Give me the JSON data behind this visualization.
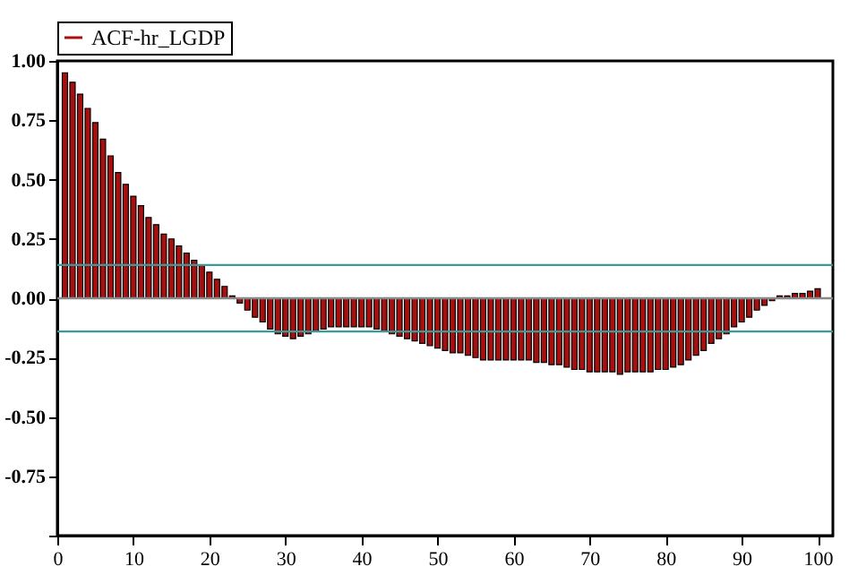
{
  "chart_data": {
    "type": "bar",
    "x": [
      1,
      2,
      3,
      4,
      5,
      6,
      7,
      8,
      9,
      10,
      11,
      12,
      13,
      14,
      15,
      16,
      17,
      18,
      19,
      20,
      21,
      22,
      23,
      24,
      25,
      26,
      27,
      28,
      29,
      30,
      31,
      32,
      33,
      34,
      35,
      36,
      37,
      38,
      39,
      40,
      41,
      42,
      43,
      44,
      45,
      46,
      47,
      48,
      49,
      50,
      51,
      52,
      53,
      54,
      55,
      56,
      57,
      58,
      59,
      60,
      61,
      62,
      63,
      64,
      65,
      66,
      67,
      68,
      69,
      70,
      71,
      72,
      73,
      74,
      75,
      76,
      77,
      78,
      79,
      80,
      81,
      82,
      83,
      84,
      85,
      86,
      87,
      88,
      89,
      90,
      91,
      92,
      93,
      94,
      95,
      96,
      97,
      98,
      99,
      100
    ],
    "series": [
      {
        "name": "ACF-hr_LGDP",
        "color": "#a81010",
        "values": [
          0.95,
          0.91,
          0.86,
          0.8,
          0.74,
          0.67,
          0.6,
          0.53,
          0.48,
          0.43,
          0.39,
          0.34,
          0.31,
          0.27,
          0.25,
          0.22,
          0.19,
          0.16,
          0.14,
          0.11,
          0.08,
          0.05,
          0.01,
          -0.02,
          -0.05,
          -0.08,
          -0.1,
          -0.13,
          -0.15,
          -0.16,
          -0.17,
          -0.16,
          -0.15,
          -0.14,
          -0.13,
          -0.12,
          -0.12,
          -0.12,
          -0.12,
          -0.12,
          -0.12,
          -0.13,
          -0.14,
          -0.15,
          -0.16,
          -0.17,
          -0.18,
          -0.19,
          -0.2,
          -0.21,
          -0.22,
          -0.23,
          -0.23,
          -0.24,
          -0.25,
          -0.26,
          -0.26,
          -0.26,
          -0.26,
          -0.26,
          -0.26,
          -0.26,
          -0.27,
          -0.27,
          -0.28,
          -0.28,
          -0.29,
          -0.3,
          -0.3,
          -0.31,
          -0.31,
          -0.31,
          -0.31,
          -0.32,
          -0.31,
          -0.31,
          -0.31,
          -0.31,
          -0.3,
          -0.3,
          -0.29,
          -0.28,
          -0.26,
          -0.24,
          -0.22,
          -0.19,
          -0.17,
          -0.15,
          -0.12,
          -0.1,
          -0.08,
          -0.05,
          -0.03,
          -0.01,
          0.01,
          0.01,
          0.02,
          0.02,
          0.03,
          0.04
        ]
      }
    ],
    "xlim": [
      0,
      102
    ],
    "xticks": [
      0,
      10,
      20,
      30,
      40,
      50,
      60,
      70,
      80,
      90,
      100
    ],
    "ylim": [
      -1,
      1
    ],
    "yticks": [
      {
        "value": -1,
        "label": null
      },
      {
        "value": -0.75,
        "label": "-0.75"
      },
      {
        "value": -0.5,
        "label": "-0.50"
      },
      {
        "value": -0.25,
        "label": "-0.25"
      },
      {
        "value": 0,
        "label": "0.00"
      },
      {
        "value": 0.25,
        "label": "0.25"
      },
      {
        "value": 0.5,
        "label": "0.50"
      },
      {
        "value": 0.75,
        "label": "0.75"
      },
      {
        "value": 1,
        "label": "1.00"
      }
    ],
    "ref_lines": [
      {
        "axis": "y",
        "value": 0.14,
        "color": "#3a9a9a"
      },
      {
        "axis": "y",
        "value": -0.14,
        "color": "#3a9a9a"
      },
      {
        "axis": "y",
        "value": 0,
        "color": "#888888"
      }
    ],
    "grid": false,
    "legend": "top left"
  }
}
